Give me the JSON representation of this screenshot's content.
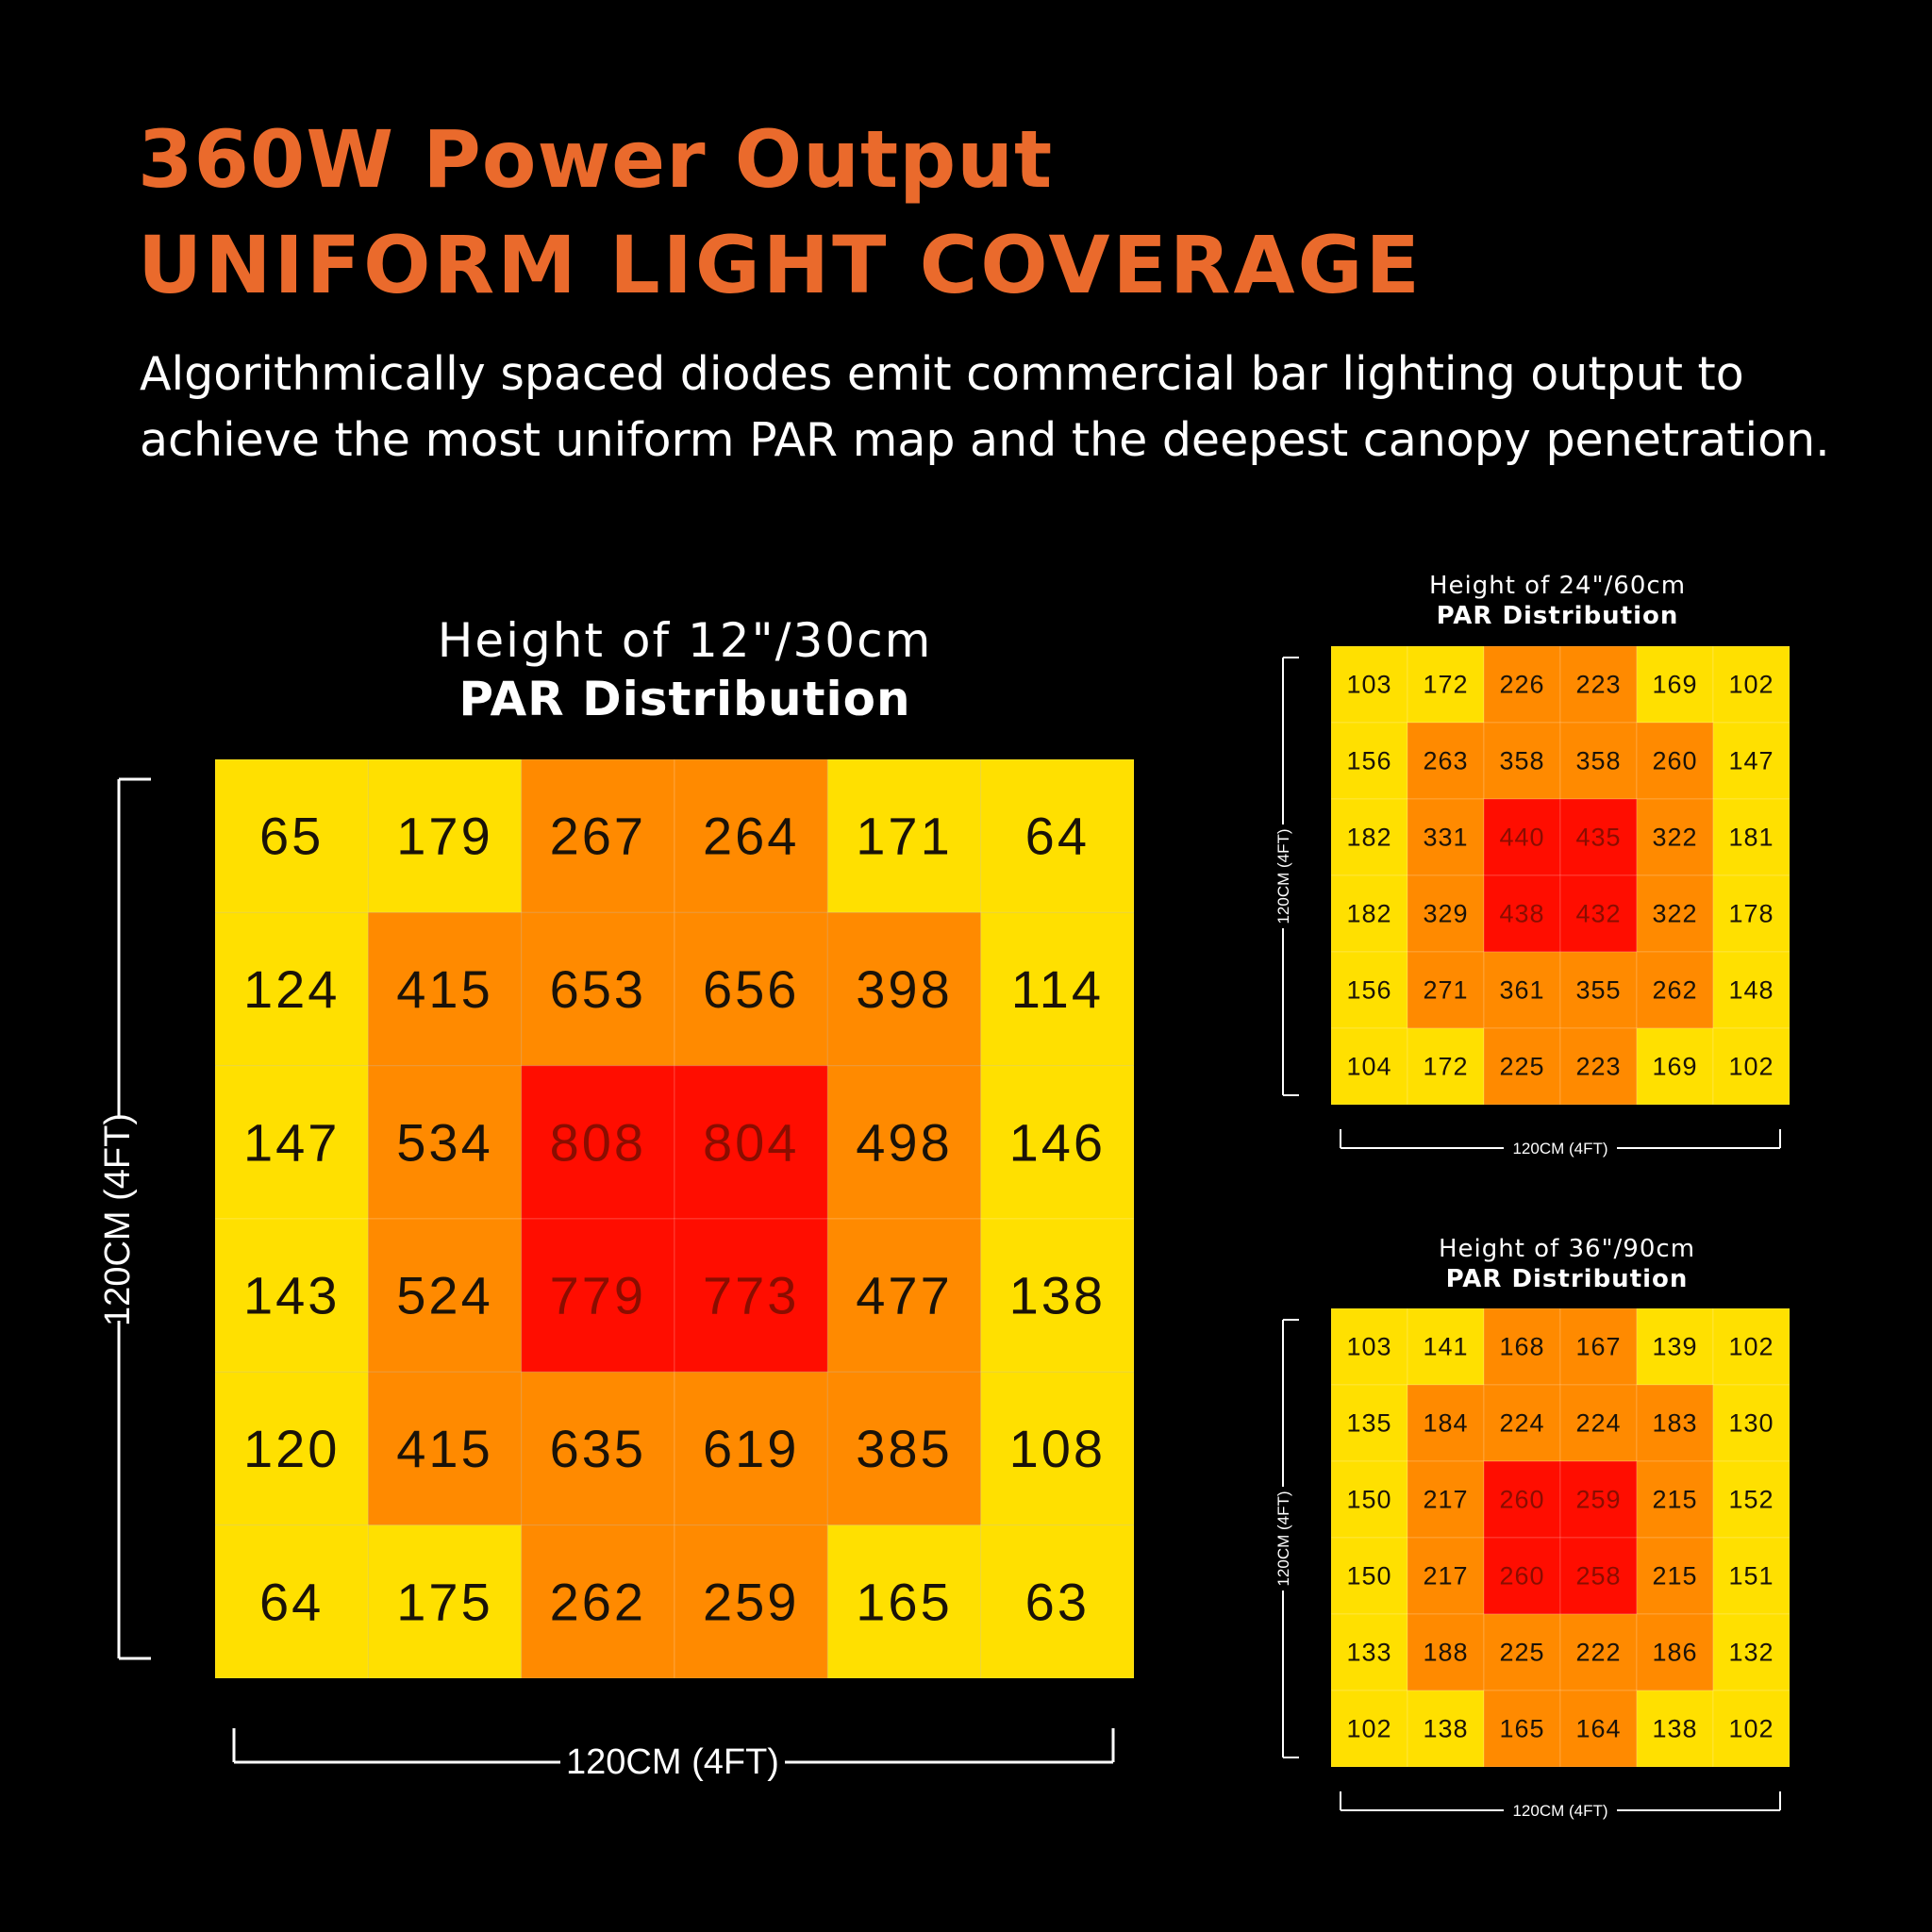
{
  "header": {
    "title_line1": "360W Power Output",
    "title_line2": "UNIFORM LIGHT COVERAGE",
    "description_line1": "Algorithmically spaced diodes emit commercial bar lighting output to",
    "description_line2": "achieve the most uniform PAR map and the deepest canopy penetration."
  },
  "panels": {
    "main": {
      "height_label": "Height of 12\"/30cm",
      "subtitle": "PAR Distribution",
      "x_dimension": "120CM (4FT)",
      "y_dimension": "120CM (4FT)"
    },
    "small1": {
      "height_label": "Height of 24\"/60cm",
      "subtitle": "PAR Distribution",
      "x_dimension": "120CM (4FT)",
      "y_dimension": "120CM (4FT)"
    },
    "small2": {
      "height_label": "Height of 36\"/90cm",
      "subtitle": "PAR Distribution",
      "x_dimension": "120CM (4FT)",
      "y_dimension": "120CM (4FT)"
    }
  },
  "colors": {
    "accent": "#ea6a2c",
    "background": "#000000",
    "text": "#ffffff",
    "cell_low": "#ffe000",
    "cell_mid": "#ff8a00",
    "cell_high": "#ff0d00"
  },
  "chart_data": [
    {
      "type": "heatmap",
      "title": "Height of 12\"/30cm",
      "subtitle": "PAR Distribution",
      "xlabel": "120CM (4FT)",
      "ylabel": "120CM (4FT)",
      "values": [
        [
          65,
          179,
          267,
          264,
          171,
          64
        ],
        [
          124,
          415,
          653,
          656,
          398,
          114
        ],
        [
          147,
          534,
          808,
          804,
          498,
          146
        ],
        [
          143,
          524,
          779,
          773,
          477,
          138
        ],
        [
          120,
          415,
          635,
          619,
          385,
          108
        ],
        [
          64,
          175,
          262,
          259,
          165,
          63
        ]
      ],
      "levels": [
        [
          0,
          0,
          1,
          1,
          0,
          0
        ],
        [
          0,
          1,
          1,
          1,
          1,
          0
        ],
        [
          0,
          1,
          2,
          2,
          1,
          0
        ],
        [
          0,
          1,
          2,
          2,
          1,
          0
        ],
        [
          0,
          1,
          1,
          1,
          1,
          0
        ],
        [
          0,
          0,
          1,
          1,
          0,
          0
        ]
      ]
    },
    {
      "type": "heatmap",
      "title": "Height of 24\"/60cm",
      "subtitle": "PAR Distribution",
      "xlabel": "120CM (4FT)",
      "ylabel": "120CM (4FT)",
      "values": [
        [
          103,
          172,
          226,
          223,
          169,
          102
        ],
        [
          156,
          263,
          358,
          358,
          260,
          147
        ],
        [
          182,
          331,
          440,
          435,
          322,
          181
        ],
        [
          182,
          329,
          438,
          432,
          322,
          178
        ],
        [
          156,
          271,
          361,
          355,
          262,
          148
        ],
        [
          104,
          172,
          225,
          223,
          169,
          102
        ]
      ],
      "levels": [
        [
          0,
          0,
          1,
          1,
          0,
          0
        ],
        [
          0,
          1,
          1,
          1,
          1,
          0
        ],
        [
          0,
          1,
          2,
          2,
          1,
          0
        ],
        [
          0,
          1,
          2,
          2,
          1,
          0
        ],
        [
          0,
          1,
          1,
          1,
          1,
          0
        ],
        [
          0,
          0,
          1,
          1,
          0,
          0
        ]
      ]
    },
    {
      "type": "heatmap",
      "title": "Height of 36\"/90cm",
      "subtitle": "PAR Distribution",
      "xlabel": "120CM (4FT)",
      "ylabel": "120CM (4FT)",
      "values": [
        [
          103,
          141,
          168,
          167,
          139,
          102
        ],
        [
          135,
          184,
          224,
          224,
          183,
          130
        ],
        [
          150,
          217,
          260,
          259,
          215,
          152
        ],
        [
          150,
          217,
          260,
          258,
          215,
          151
        ],
        [
          133,
          188,
          225,
          222,
          186,
          132
        ],
        [
          102,
          138,
          165,
          164,
          138,
          102
        ]
      ],
      "levels": [
        [
          0,
          0,
          1,
          1,
          0,
          0
        ],
        [
          0,
          1,
          1,
          1,
          1,
          0
        ],
        [
          0,
          1,
          2,
          2,
          1,
          0
        ],
        [
          0,
          1,
          2,
          2,
          1,
          0
        ],
        [
          0,
          1,
          1,
          1,
          1,
          0
        ],
        [
          0,
          0,
          1,
          1,
          0,
          0
        ]
      ]
    }
  ]
}
